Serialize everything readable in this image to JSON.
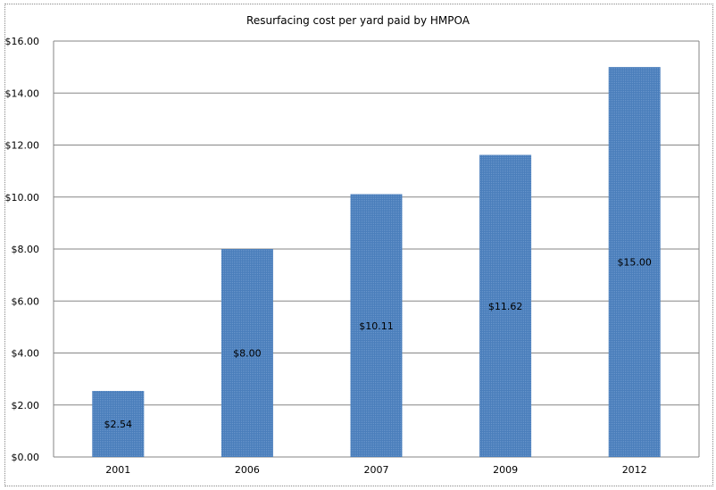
{
  "chart_data": {
    "type": "bar",
    "title": "Resurfacing cost per yard paid by HMPOA",
    "categories": [
      "2001",
      "2006",
      "2007",
      "2009",
      "2012"
    ],
    "values": [
      2.54,
      8.0,
      10.11,
      11.62,
      15.0
    ],
    "data_labels": [
      "$2.54",
      "$8.00",
      "$10.11",
      "$11.62",
      "$15.00"
    ],
    "ylim": [
      0,
      16
    ],
    "yticks": [
      "$0.00",
      "$2.00",
      "$4.00",
      "$6.00",
      "$8.00",
      "$10.00",
      "$12.00",
      "$14.00",
      "$16.00"
    ],
    "grid": true,
    "legend": "none",
    "bar_color": "#4a7ebb",
    "xlabel": "",
    "ylabel": ""
  }
}
